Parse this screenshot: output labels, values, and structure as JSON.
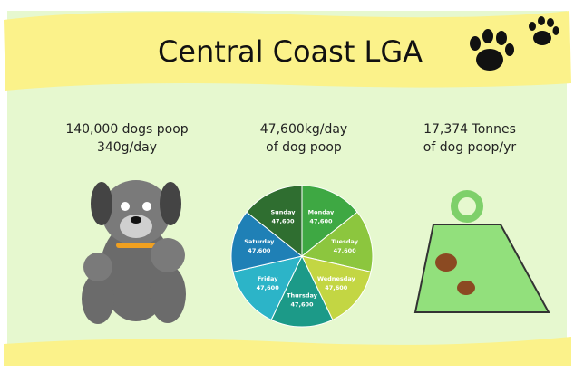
{
  "header": {
    "title": "Central Coast LGA"
  },
  "stats": [
    {
      "lines": [
        "140,000 dogs poop",
        "340g/day"
      ]
    },
    {
      "lines": [
        "47,600kg/day",
        "of dog poop"
      ]
    },
    {
      "lines": [
        "17,374 Tonnes",
        "of dog poop/yr"
      ]
    }
  ],
  "chart_data": {
    "type": "pie",
    "categories": [
      "Monday",
      "Tuesday",
      "Wednesday",
      "Thursday",
      "Friday",
      "Saturday",
      "Sunday"
    ],
    "values": [
      47600,
      47600,
      47600,
      47600,
      47600,
      47600,
      47600
    ],
    "value_labels": [
      "47,600",
      "47,600",
      "47,600",
      "47,600",
      "47,600",
      "47,600",
      "47,600"
    ],
    "colors": [
      "#3ea843",
      "#8cc63e",
      "#c3d643",
      "#1c9a88",
      "#2cb4c8",
      "#1f80b6",
      "#2f6e30"
    ]
  }
}
